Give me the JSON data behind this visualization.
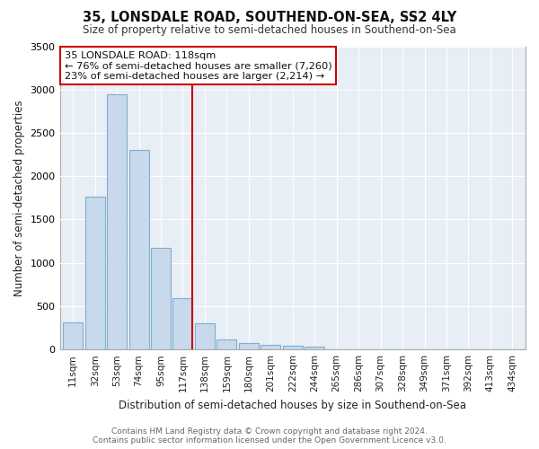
{
  "title": "35, LONSDALE ROAD, SOUTHEND-ON-SEA, SS2 4LY",
  "subtitle": "Size of property relative to semi-detached houses in Southend-on-Sea",
  "xlabel": "Distribution of semi-detached houses by size in Southend-on-Sea",
  "ylabel": "Number of semi-detached properties",
  "annotation_title": "35 LONSDALE ROAD: 118sqm",
  "annotation_line1": "← 76% of semi-detached houses are smaller (7,260)",
  "annotation_line2": "23% of semi-detached houses are larger (2,214) →",
  "categories": [
    "11sqm",
    "32sqm",
    "53sqm",
    "74sqm",
    "95sqm",
    "117sqm",
    "138sqm",
    "159sqm",
    "180sqm",
    "201sqm",
    "222sqm",
    "244sqm",
    "265sqm",
    "286sqm",
    "307sqm",
    "328sqm",
    "349sqm",
    "371sqm",
    "392sqm",
    "413sqm",
    "434sqm"
  ],
  "values": [
    310,
    1760,
    2950,
    2300,
    1170,
    590,
    300,
    120,
    70,
    55,
    45,
    30,
    0,
    0,
    0,
    0,
    0,
    0,
    0,
    0,
    0
  ],
  "bar_color": "#c8d9ec",
  "bar_edge_color": "#7fafd0",
  "vline_color": "#cc0000",
  "annotation_box_color": "#ffffff",
  "annotation_box_edge": "#cc0000",
  "footer_line1": "Contains HM Land Registry data © Crown copyright and database right 2024.",
  "footer_line2": "Contains public sector information licensed under the Open Government Licence v3.0.",
  "ylim": [
    0,
    3500
  ],
  "yticks": [
    0,
    500,
    1000,
    1500,
    2000,
    2500,
    3000,
    3500
  ],
  "plot_bg_color": "#e8eef5",
  "background_color": "#ffffff",
  "grid_color": "#ffffff"
}
